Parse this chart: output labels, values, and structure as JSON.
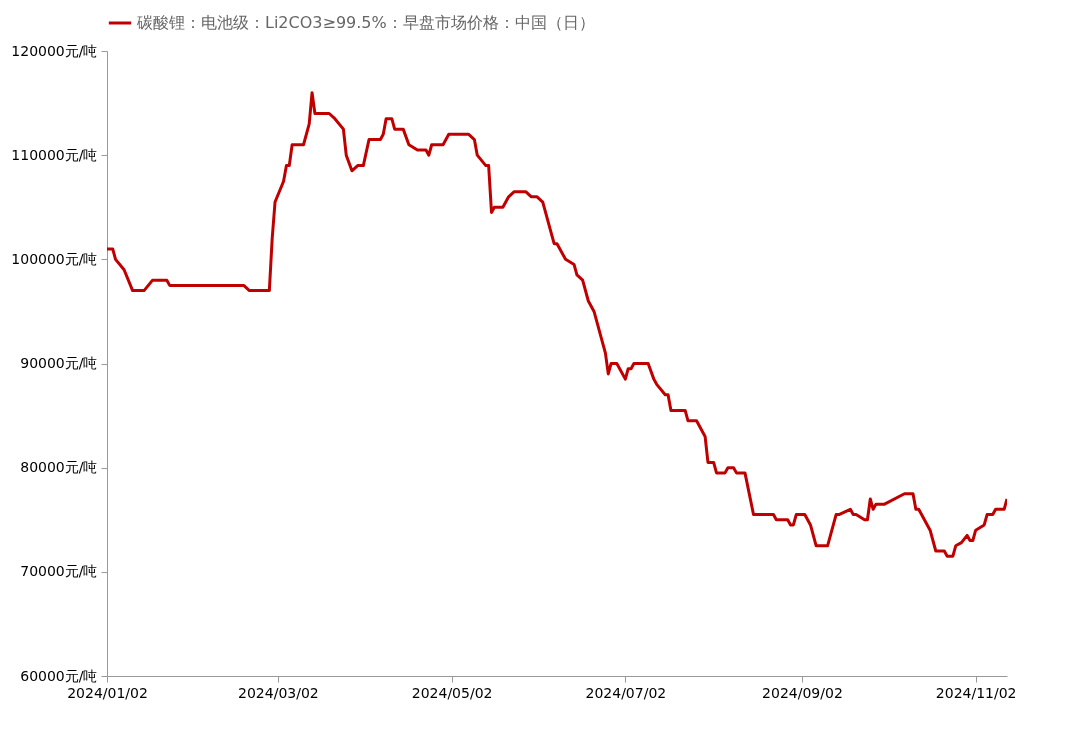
{
  "chart_data": {
    "type": "line",
    "legend": "top",
    "grid": false,
    "marker": "none",
    "line_style": "solid",
    "x": [
      "2024-01-02",
      "2024-01-04",
      "2024-01-05",
      "2024-01-08",
      "2024-01-11",
      "2024-01-15",
      "2024-01-18",
      "2024-01-23",
      "2024-01-24",
      "2024-02-19",
      "2024-02-21",
      "2024-02-27",
      "2024-02-28",
      "2024-02-29",
      "2024-03-01",
      "2024-03-04",
      "2024-03-05",
      "2024-03-06",
      "2024-03-07",
      "2024-03-11",
      "2024-03-13",
      "2024-03-14",
      "2024-03-15",
      "2024-03-20",
      "2024-03-22",
      "2024-03-25",
      "2024-03-26",
      "2024-03-28",
      "2024-03-30",
      "2024-04-01",
      "2024-04-03",
      "2024-04-07",
      "2024-04-08",
      "2024-04-09",
      "2024-04-11",
      "2024-04-12",
      "2024-04-15",
      "2024-04-17",
      "2024-04-20",
      "2024-04-23",
      "2024-04-24",
      "2024-04-25",
      "2024-04-29",
      "2024-05-01",
      "2024-05-08",
      "2024-05-10",
      "2024-05-11",
      "2024-05-14",
      "2024-05-15",
      "2024-05-16",
      "2024-05-17",
      "2024-05-20",
      "2024-05-22",
      "2024-05-24",
      "2024-05-28",
      "2024-05-30",
      "2024-06-01",
      "2024-06-03",
      "2024-06-06",
      "2024-06-07",
      "2024-06-08",
      "2024-06-11",
      "2024-06-14",
      "2024-06-15",
      "2024-06-17",
      "2024-06-19",
      "2024-06-21",
      "2024-06-25",
      "2024-06-26",
      "2024-06-27",
      "2024-06-29",
      "2024-07-02",
      "2024-07-03",
      "2024-07-04",
      "2024-07-05",
      "2024-07-10",
      "2024-07-12",
      "2024-07-13",
      "2024-07-16",
      "2024-07-17",
      "2024-07-18",
      "2024-07-23",
      "2024-07-24",
      "2024-07-27",
      "2024-07-30",
      "2024-07-31",
      "2024-08-02",
      "2024-08-03",
      "2024-08-06",
      "2024-08-07",
      "2024-08-09",
      "2024-08-10",
      "2024-08-13",
      "2024-08-16",
      "2024-08-23",
      "2024-08-24",
      "2024-08-28",
      "2024-08-29",
      "2024-08-30",
      "2024-08-31",
      "2024-09-03",
      "2024-09-05",
      "2024-09-07",
      "2024-09-11",
      "2024-09-14",
      "2024-09-15",
      "2024-09-19",
      "2024-09-20",
      "2024-09-21",
      "2024-09-24",
      "2024-09-25",
      "2024-09-26",
      "2024-09-27",
      "2024-09-28",
      "2024-10-01",
      "2024-10-08",
      "2024-10-11",
      "2024-10-12",
      "2024-10-13",
      "2024-10-17",
      "2024-10-19",
      "2024-10-22",
      "2024-10-23",
      "2024-10-25",
      "2024-10-26",
      "2024-10-28",
      "2024-10-30",
      "2024-10-31",
      "2024-11-01",
      "2024-11-02",
      "2024-11-05",
      "2024-11-06",
      "2024-11-08",
      "2024-11-09",
      "2024-11-12",
      "2024-11-13"
    ],
    "series": [
      {
        "name": "碳酸锂：电池级：Li2CO3≥99.5%：早盘市场价格：中国（日）",
        "color": "#c00000",
        "values": [
          101000,
          101000,
          100000,
          99000,
          97000,
          97000,
          98000,
          98000,
          97500,
          97500,
          97000,
          97000,
          97000,
          102000,
          105500,
          107500,
          109000,
          109000,
          111000,
          111000,
          113000,
          116000,
          114000,
          114000,
          113500,
          112500,
          110000,
          108500,
          109000,
          109000,
          111500,
          111500,
          112000,
          113500,
          113500,
          112500,
          112500,
          111000,
          110500,
          110500,
          110000,
          111000,
          111000,
          112000,
          112000,
          111500,
          110000,
          109000,
          109000,
          104500,
          105000,
          105000,
          106000,
          106500,
          106500,
          106000,
          106000,
          105500,
          102500,
          101500,
          101500,
          100000,
          99500,
          98500,
          98000,
          96000,
          95000,
          91000,
          89000,
          90000,
          90000,
          88500,
          89500,
          89500,
          90000,
          90000,
          88500,
          88000,
          87000,
          87000,
          85500,
          85500,
          84500,
          84500,
          83000,
          80500,
          80500,
          79500,
          79500,
          80000,
          80000,
          79500,
          79500,
          75500,
          75500,
          75000,
          75000,
          74500,
          74500,
          75500,
          75500,
          74500,
          72500,
          72500,
          75500,
          75500,
          76000,
          75500,
          75500,
          75000,
          75000,
          77000,
          76000,
          76500,
          76500,
          77500,
          77500,
          76000,
          76000,
          74000,
          72000,
          72000,
          71500,
          71500,
          72500,
          72800,
          73500,
          73000,
          73000,
          74000,
          74500,
          75500,
          75500,
          76000,
          76000,
          77000
        ]
      }
    ],
    "xlim": [
      "2024-01-02",
      "2024-11-13"
    ],
    "xticks": [
      {
        "value": "2024-01-02",
        "label": "2024/01/02"
      },
      {
        "value": "2024-03-02",
        "label": "2024/03/02"
      },
      {
        "value": "2024-05-02",
        "label": "2024/05/02"
      },
      {
        "value": "2024-07-02",
        "label": "2024/07/02"
      },
      {
        "value": "2024-09-02",
        "label": "2024/09/02"
      },
      {
        "value": "2024-11-02",
        "label": "2024/11/02"
      }
    ],
    "ylim": [
      60000,
      120000
    ],
    "yticks": [
      {
        "value": 60000,
        "label": "60000元/吨"
      },
      {
        "value": 70000,
        "label": "70000元/吨"
      },
      {
        "value": 80000,
        "label": "80000元/吨"
      },
      {
        "value": 90000,
        "label": "90000元/吨"
      },
      {
        "value": 100000,
        "label": "100000元/吨"
      },
      {
        "value": 110000,
        "label": "110000元/吨"
      },
      {
        "value": 120000,
        "label": "120000元/吨"
      }
    ]
  }
}
